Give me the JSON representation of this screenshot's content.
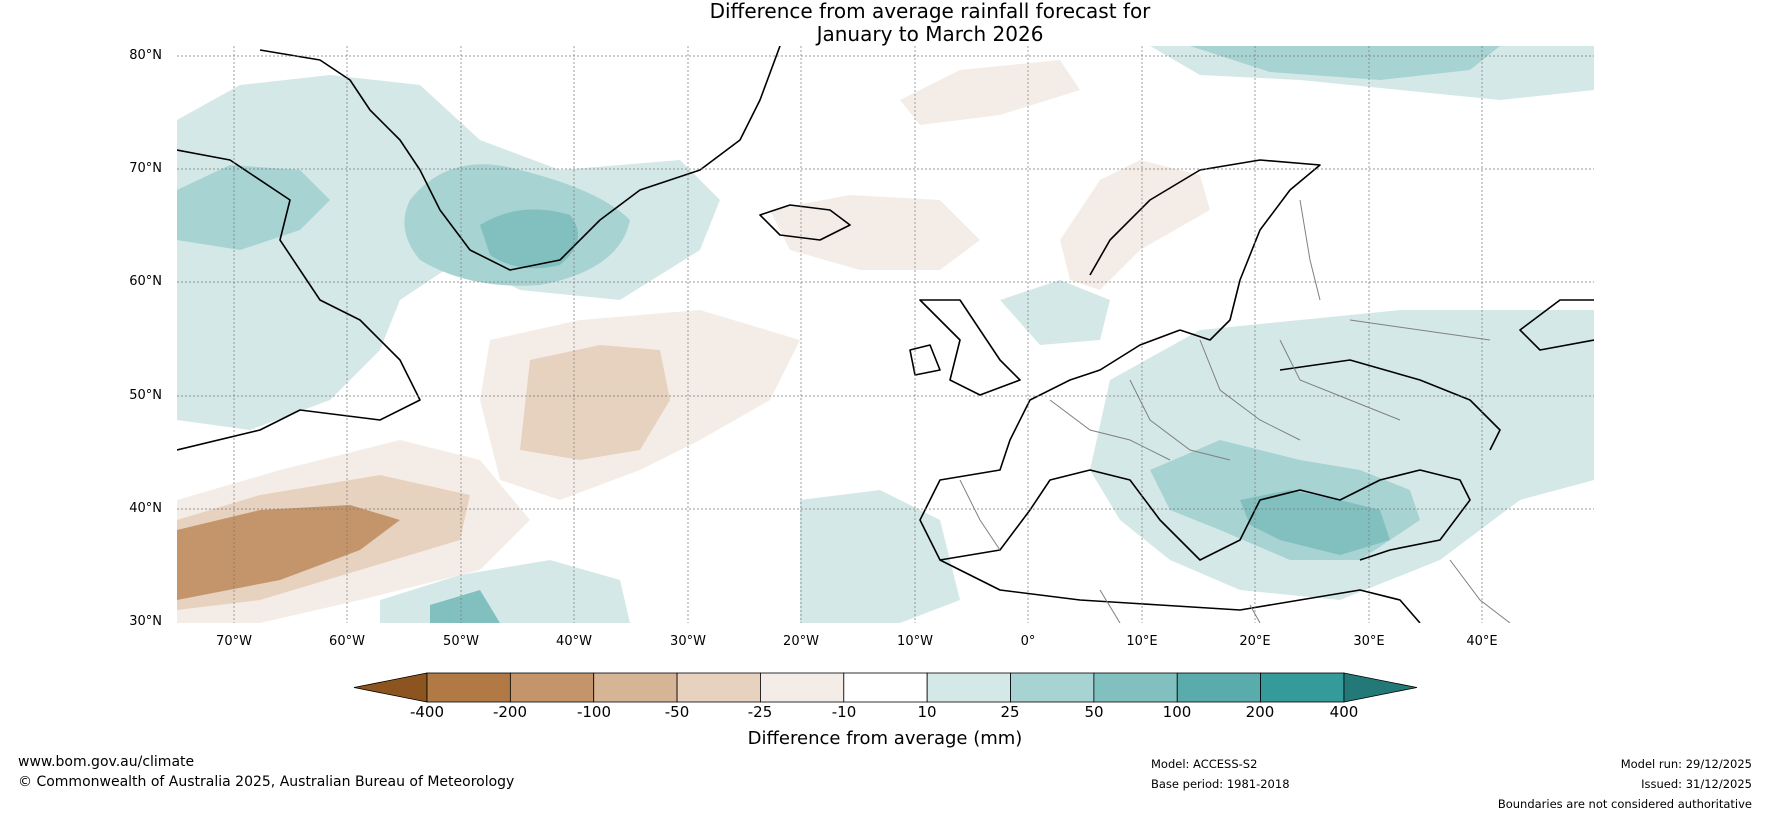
{
  "title": {
    "line1": "Difference from average rainfall forecast for",
    "line2": "January to March 2026"
  },
  "latitude_labels": [
    "80°N",
    "70°N",
    "60°N",
    "50°N",
    "40°N",
    "30°N"
  ],
  "longitude_labels": [
    "70°W",
    "60°W",
    "50°W",
    "40°W",
    "30°W",
    "20°W",
    "10°W",
    "0°",
    "10°E",
    "20°E",
    "30°E",
    "40°E"
  ],
  "colorbar": {
    "ticks": [
      "-400",
      "-200",
      "-100",
      "-50",
      "-25",
      "-10",
      "10",
      "25",
      "50",
      "100",
      "200",
      "400"
    ],
    "colors": [
      "#8c5520",
      "#b17a45",
      "#c4956b",
      "#d5b596",
      "#e7d2c0",
      "#f4ede7",
      "#ffffff",
      "#d5e8e8",
      "#a7d3d3",
      "#82c0c0",
      "#5aacac",
      "#349a9a",
      "#237878"
    ],
    "label": "Difference from average (mm)"
  },
  "footer": {
    "website": "www.bom.gov.au/climate",
    "copyright": "© Commonwealth of Australia 2025, Australian Bureau of Meteorology",
    "model": "Model: ACCESS-S2",
    "base_period": "Base period: 1981-2018",
    "model_run": "Model run: 29/12/2025",
    "issued": "Issued: 31/12/2025",
    "disclaimer": "Boundaries are not considered authoritative"
  }
}
